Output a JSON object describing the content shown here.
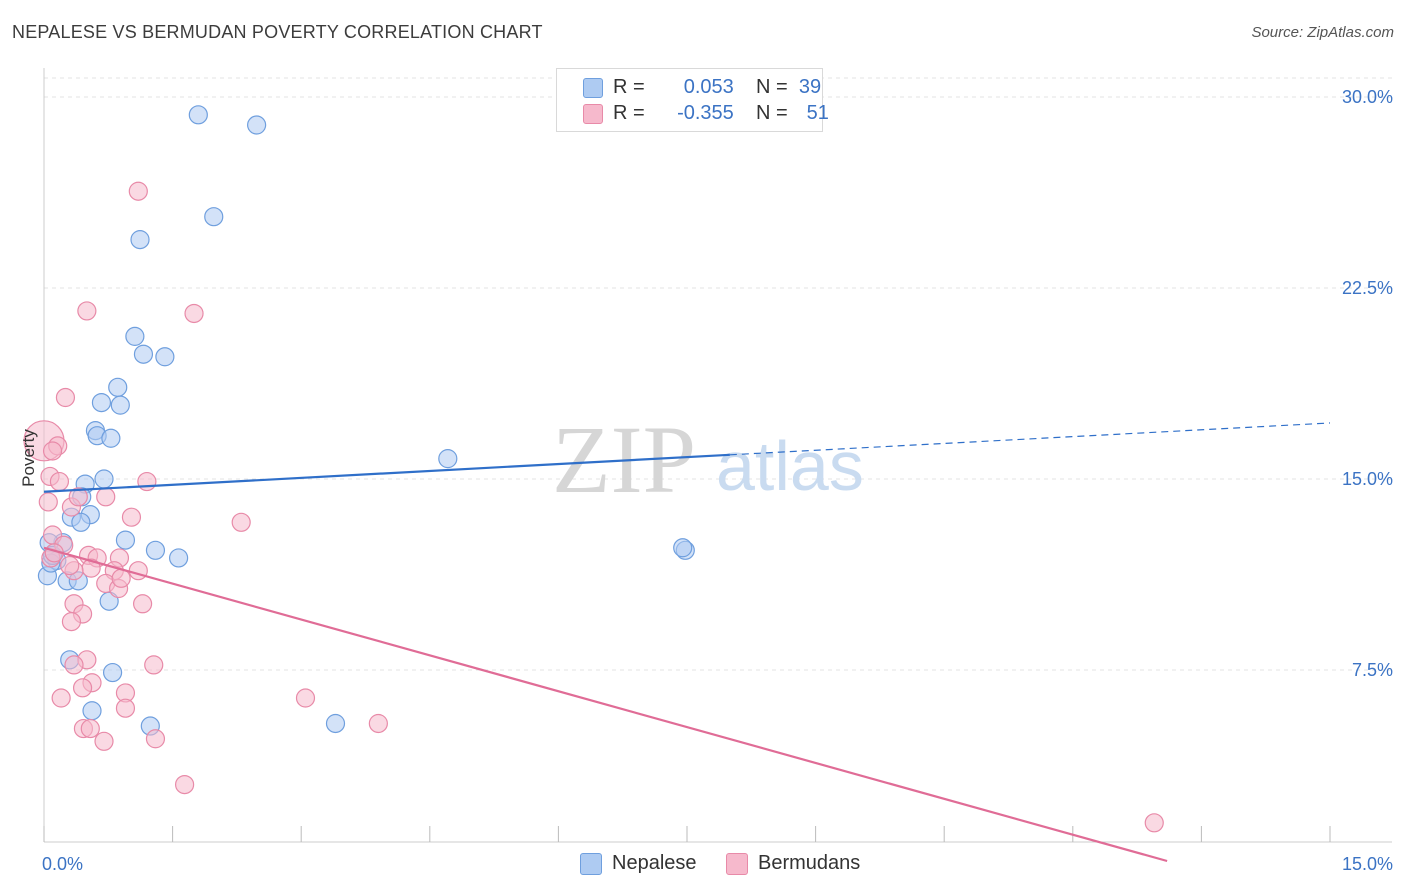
{
  "title": "NEPALESE VS BERMUDAN POVERTY CORRELATION CHART",
  "source": "Source: ZipAtlas.com",
  "colors": {
    "nepalese_fill": "#aecbf2",
    "nepalese_stroke": "#6f9fde",
    "nepalese_line": "#2f6fc9",
    "bermudan_fill": "#f6b9cc",
    "bermudan_stroke": "#e88aa8",
    "bermudan_line": "#e06c96",
    "tick_text": "#3b73c4",
    "grid": "#e3e3e3"
  },
  "legend": {
    "nepalese": {
      "r_label": "R =",
      "r_value": "0.053",
      "n_label": "N =",
      "n_value": "39"
    },
    "bermudan": {
      "r_label": "R =",
      "r_value": "-0.355",
      "n_label": "N =",
      "n_value": "51"
    }
  },
  "watermark": {
    "zip": "ZIP",
    "atlas": "atlas"
  },
  "chart_data": {
    "type": "scatter",
    "ylabel": "Poverty",
    "xlabel": "",
    "xlim": [
      0,
      15
    ],
    "ylim": [
      0,
      31
    ],
    "x_tick_labels": [
      {
        "value": 0,
        "label": "0.0%"
      },
      {
        "value": 15,
        "label": "15.0%"
      }
    ],
    "y_tick_labels": [
      {
        "value": 7.5,
        "label": "7.5%"
      },
      {
        "value": 15,
        "label": "15.0%"
      },
      {
        "value": 22.5,
        "label": "22.5%"
      },
      {
        "value": 30,
        "label": "30.0%"
      }
    ],
    "grid": true,
    "legend_position": "top-center",
    "series": [
      {
        "name": "Nepalese",
        "points": [
          [
            1.8,
            29.3
          ],
          [
            2.48,
            28.9
          ],
          [
            1.98,
            25.3
          ],
          [
            1.12,
            24.4
          ],
          [
            1.06,
            20.6
          ],
          [
            1.16,
            19.9
          ],
          [
            1.41,
            19.8
          ],
          [
            0.86,
            18.6
          ],
          [
            0.67,
            18.0
          ],
          [
            0.89,
            17.9
          ],
          [
            0.6,
            16.9
          ],
          [
            0.62,
            16.7
          ],
          [
            0.78,
            16.6
          ],
          [
            4.71,
            15.8
          ],
          [
            0.7,
            15.0
          ],
          [
            0.48,
            14.8
          ],
          [
            0.44,
            14.3
          ],
          [
            0.54,
            13.6
          ],
          [
            0.32,
            13.5
          ],
          [
            0.43,
            13.3
          ],
          [
            0.22,
            12.5
          ],
          [
            0.95,
            12.6
          ],
          [
            0.06,
            12.5
          ],
          [
            1.3,
            12.2
          ],
          [
            7.48,
            12.2
          ],
          [
            7.45,
            12.3
          ],
          [
            1.57,
            11.9
          ],
          [
            0.15,
            11.8
          ],
          [
            0.04,
            11.2
          ],
          [
            0.27,
            11.0
          ],
          [
            0.4,
            11.0
          ],
          [
            0.76,
            10.2
          ],
          [
            0.3,
            7.9
          ],
          [
            0.8,
            7.4
          ],
          [
            0.56,
            5.9
          ],
          [
            1.24,
            5.3
          ],
          [
            3.4,
            5.4
          ],
          [
            0.08,
            11.7
          ],
          [
            0.1,
            12.0
          ]
        ],
        "trend": {
          "x": [
            0,
            8
          ],
          "y": [
            14.5,
            15.95
          ]
        },
        "trend_extension": {
          "x": [
            8,
            15
          ],
          "y": [
            15.95,
            17.2
          ]
        }
      },
      {
        "name": "Bermudans",
        "points": [
          [
            1.1,
            26.3
          ],
          [
            0.5,
            21.6
          ],
          [
            1.75,
            21.5
          ],
          [
            0.25,
            18.2
          ],
          [
            0.0,
            16.5
          ],
          [
            0.16,
            16.3
          ],
          [
            0.1,
            16.1
          ],
          [
            0.07,
            15.1
          ],
          [
            1.2,
            14.9
          ],
          [
            0.18,
            14.9
          ],
          [
            0.05,
            14.1
          ],
          [
            0.32,
            13.9
          ],
          [
            0.4,
            14.3
          ],
          [
            0.72,
            14.3
          ],
          [
            1.02,
            13.5
          ],
          [
            2.3,
            13.3
          ],
          [
            0.1,
            12.8
          ],
          [
            0.23,
            12.4
          ],
          [
            0.52,
            12.0
          ],
          [
            0.62,
            11.9
          ],
          [
            0.88,
            11.9
          ],
          [
            0.55,
            11.5
          ],
          [
            0.35,
            11.4
          ],
          [
            0.82,
            11.4
          ],
          [
            1.1,
            11.4
          ],
          [
            0.72,
            10.9
          ],
          [
            0.87,
            10.7
          ],
          [
            1.15,
            10.1
          ],
          [
            0.35,
            10.1
          ],
          [
            0.45,
            9.7
          ],
          [
            0.32,
            9.4
          ],
          [
            0.5,
            7.9
          ],
          [
            0.35,
            7.7
          ],
          [
            1.28,
            7.7
          ],
          [
            0.56,
            7.0
          ],
          [
            0.45,
            6.8
          ],
          [
            0.95,
            6.6
          ],
          [
            3.05,
            6.4
          ],
          [
            0.2,
            6.4
          ],
          [
            0.95,
            6.0
          ],
          [
            0.46,
            5.2
          ],
          [
            0.54,
            5.2
          ],
          [
            3.9,
            5.4
          ],
          [
            0.7,
            4.7
          ],
          [
            1.3,
            4.8
          ],
          [
            1.64,
            3.0
          ],
          [
            12.95,
            1.5
          ],
          [
            0.08,
            11.9
          ],
          [
            0.12,
            12.1
          ],
          [
            0.3,
            11.6
          ],
          [
            0.9,
            11.1
          ]
        ],
        "trend": {
          "x": [
            0,
            13.1
          ],
          "y": [
            12.3,
            0.0
          ]
        }
      }
    ]
  }
}
